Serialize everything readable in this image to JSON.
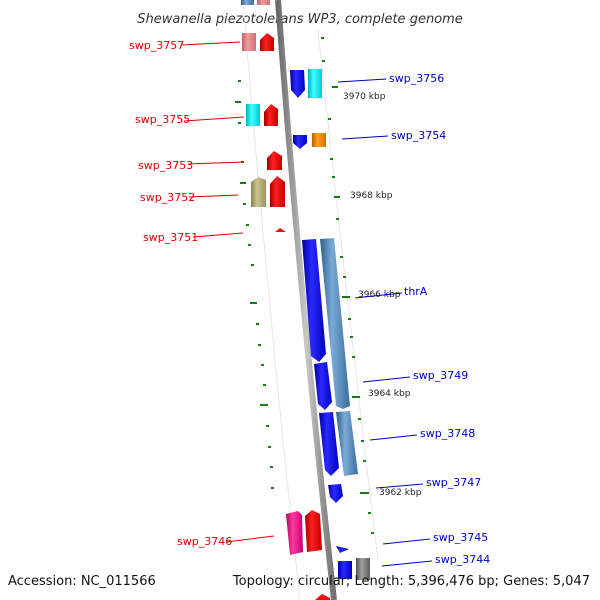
{
  "title": "Shewanella piezotolerans WP3, complete genome",
  "accession": "Accession: NC_011566",
  "topology": "Topology: circular; Length: 5,396,476 bp; Genes: 5,047",
  "colors": {
    "left_label": "#dd0000",
    "right_label": "#0000cc",
    "backbone": "#8a8a8a",
    "tick": "#1a7a1a"
  },
  "scale_ticks": [
    {
      "label": "3970 kbp"
    },
    {
      "label": "3968 kbp"
    },
    {
      "label": "3966 kbp"
    },
    {
      "label": "3964 kbp"
    },
    {
      "label": "3962 kbp"
    }
  ],
  "left_labels": [
    {
      "text": "swp_3757"
    },
    {
      "text": "swp_3755"
    },
    {
      "text": "swp_3753"
    },
    {
      "text": "swp_3752"
    },
    {
      "text": "swp_3751"
    },
    {
      "text": "swp_3746"
    }
  ],
  "right_labels": [
    {
      "text": "swp_3756"
    },
    {
      "text": "swp_3754"
    },
    {
      "text": "thrA"
    },
    {
      "text": "swp_3749"
    },
    {
      "text": "swp_3748"
    },
    {
      "text": "swp_3747"
    },
    {
      "text": "swp_3745"
    },
    {
      "text": "swp_3744"
    }
  ]
}
